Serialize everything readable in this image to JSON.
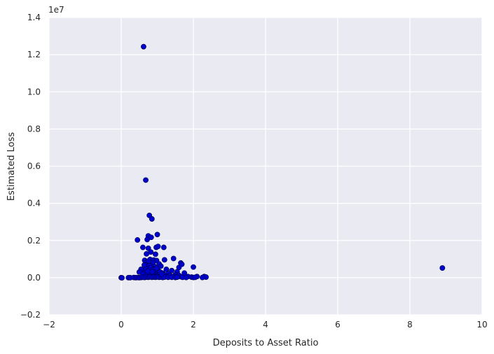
{
  "chart_data": {
    "type": "scatter",
    "title": "",
    "xlabel": "Deposits to Asset Ratio",
    "ylabel": "Estimated Loss",
    "y_offset_label": "1e7",
    "xlim": [
      -2,
      10
    ],
    "ylim": [
      -0.2,
      1.4
    ],
    "y_scale": "1e7",
    "x_ticks": [
      -2,
      0,
      2,
      4,
      6,
      8,
      10
    ],
    "x_tick_labels": [
      "−2",
      "0",
      "2",
      "4",
      "6",
      "8",
      "10"
    ],
    "y_ticks": [
      -0.2,
      0.0,
      0.2,
      0.4,
      0.6,
      0.8,
      1.0,
      1.2,
      1.4
    ],
    "y_tick_labels": [
      "−0.2",
      "0.0",
      "0.2",
      "0.4",
      "0.6",
      "0.8",
      "1.0",
      "1.2",
      "1.4"
    ],
    "grid": true,
    "background": "#EAEAF2",
    "point_color": "#0000CC",
    "point_edge": "#000044",
    "series": [
      {
        "points": [
          [
            0.62,
            1.243
          ],
          [
            0.68,
            0.525
          ],
          [
            0.78,
            0.335
          ],
          [
            0.85,
            0.316
          ],
          [
            1.0,
            0.232
          ],
          [
            0.75,
            0.225
          ],
          [
            0.83,
            0.217
          ],
          [
            0.45,
            0.203
          ],
          [
            0.72,
            0.205
          ],
          [
            0.6,
            0.163
          ],
          [
            0.97,
            0.163
          ],
          [
            1.02,
            0.168
          ],
          [
            1.18,
            0.163
          ],
          [
            0.75,
            0.158
          ],
          [
            0.82,
            0.138
          ],
          [
            0.7,
            0.128
          ],
          [
            0.95,
            0.126
          ],
          [
            1.45,
            0.103
          ],
          [
            1.2,
            0.096
          ],
          [
            0.65,
            0.093
          ],
          [
            0.8,
            0.098
          ],
          [
            0.9,
            0.095
          ],
          [
            0.98,
            0.092
          ],
          [
            1.65,
            0.079
          ],
          [
            1.68,
            0.072
          ],
          [
            1.05,
            0.074
          ],
          [
            0.72,
            0.083
          ],
          [
            0.88,
            0.08
          ],
          [
            0.77,
            0.073
          ],
          [
            2.0,
            0.057
          ],
          [
            0.7,
            0.063
          ],
          [
            0.92,
            0.06
          ],
          [
            1.1,
            0.062
          ],
          [
            1.6,
            0.055
          ],
          [
            0.85,
            0.05
          ],
          [
            0.55,
            0.045
          ],
          [
            1.25,
            0.045
          ],
          [
            1.4,
            0.038
          ],
          [
            0.75,
            0.04
          ],
          [
            0.95,
            0.035
          ],
          [
            1.55,
            0.032
          ],
          [
            0.5,
            0.03
          ],
          [
            0.65,
            0.028
          ],
          [
            0.8,
            0.025
          ],
          [
            1.0,
            0.027
          ],
          [
            1.15,
            0.025
          ],
          [
            1.3,
            0.022
          ],
          [
            1.75,
            0.025
          ],
          [
            0.6,
            0.02
          ],
          [
            0.9,
            0.018
          ],
          [
            1.05,
            0.015
          ],
          [
            1.2,
            0.014
          ],
          [
            1.5,
            0.016
          ],
          [
            1.35,
            0.012
          ],
          [
            1.6,
            0.012
          ],
          [
            0.7,
            0.012
          ],
          [
            0.85,
            0.01
          ],
          [
            0.95,
            0.008
          ],
          [
            1.1,
            0.008
          ],
          [
            1.25,
            0.006
          ],
          [
            1.45,
            0.007
          ],
          [
            1.65,
            0.005
          ],
          [
            1.85,
            0.006
          ],
          [
            2.1,
            0.006
          ],
          [
            2.3,
            0.006
          ],
          [
            2.35,
            0.003
          ],
          [
            1.95,
            0.003
          ],
          [
            0.0,
            0.0
          ],
          [
            0.02,
            -0.001
          ],
          [
            0.2,
            0.0
          ],
          [
            0.25,
            0.0
          ],
          [
            0.35,
            0.001
          ],
          [
            0.4,
            0.0
          ],
          [
            0.45,
            0.001
          ],
          [
            0.5,
            0.0
          ],
          [
            0.55,
            0.001
          ],
          [
            0.6,
            0.002
          ],
          [
            0.65,
            0.001
          ],
          [
            0.7,
            0.003
          ],
          [
            0.75,
            0.002
          ],
          [
            0.8,
            0.004
          ],
          [
            0.85,
            0.002
          ],
          [
            0.9,
            0.003
          ],
          [
            0.95,
            0.002
          ],
          [
            1.0,
            0.004
          ],
          [
            1.05,
            0.002
          ],
          [
            1.1,
            0.003
          ],
          [
            1.15,
            0.001
          ],
          [
            1.2,
            0.003
          ],
          [
            1.3,
            0.002
          ],
          [
            1.4,
            0.002
          ],
          [
            1.5,
            0.001
          ],
          [
            1.55,
            0.003
          ],
          [
            1.7,
            0.002
          ],
          [
            1.8,
            0.001
          ],
          [
            2.0,
            0.001
          ],
          [
            2.05,
            0.002
          ],
          [
            2.25,
            0.001
          ],
          [
            0.72,
            0.07
          ],
          [
            0.78,
            0.065
          ],
          [
            0.82,
            0.055
          ],
          [
            0.88,
            0.045
          ],
          [
            0.92,
            0.042
          ],
          [
            0.68,
            0.05
          ],
          [
            0.74,
            0.035
          ],
          [
            0.86,
            0.032
          ],
          [
            1.02,
            0.04
          ],
          [
            1.08,
            0.03
          ],
          [
            1.12,
            0.02
          ],
          [
            0.98,
            0.05
          ],
          [
            0.64,
            0.068
          ],
          [
            0.76,
            0.09
          ],
          [
            8.9,
            0.052
          ]
        ]
      }
    ]
  }
}
